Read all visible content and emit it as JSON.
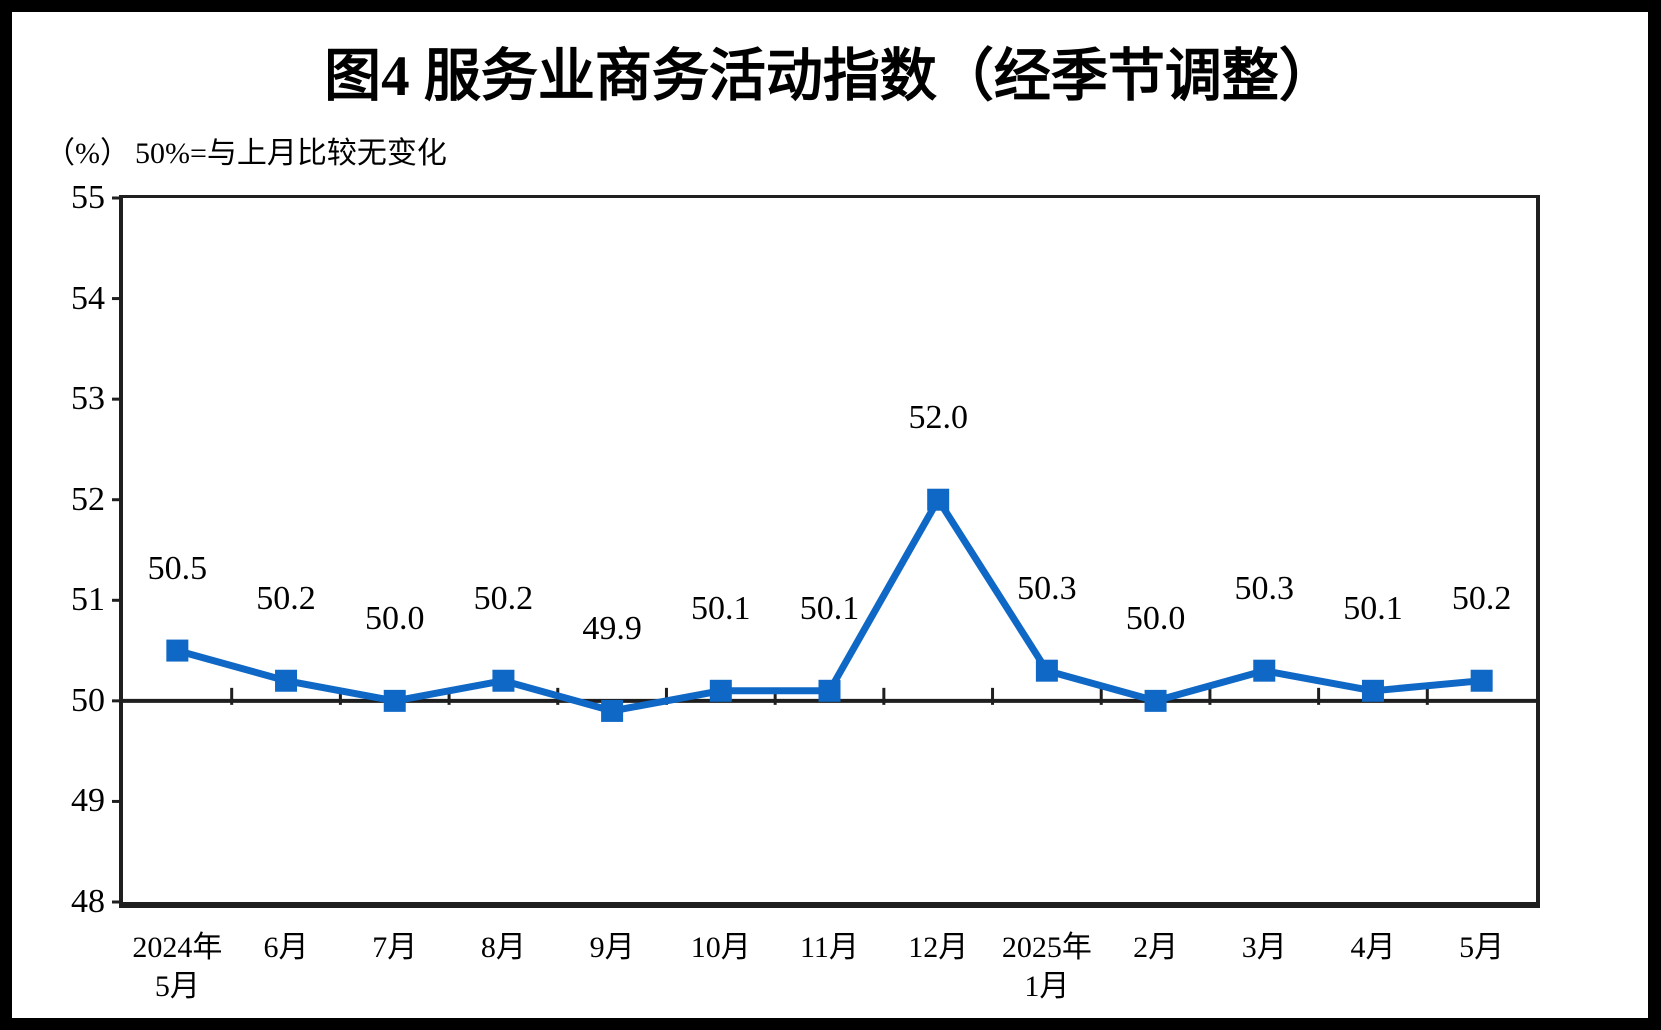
{
  "header": {
    "title": "图4 服务业商务活动指数（经季节调整）",
    "unit_label": "（%）",
    "reference_note": "50%=与上月比较无变化"
  },
  "chart_data": {
    "type": "line",
    "title": "图4 服务业商务活动指数（经季节调整）",
    "subtitle_unit": "（%）",
    "subtitle_note": "50%=与上月比较无变化",
    "categories": [
      "2024年\n5月",
      "6月",
      "7月",
      "8月",
      "9月",
      "10月",
      "11月",
      "12月",
      "2025年\n1月",
      "2月",
      "3月",
      "4月",
      "5月"
    ],
    "values": [
      50.5,
      50.2,
      50.0,
      50.2,
      49.9,
      50.1,
      50.1,
      52.0,
      50.3,
      50.0,
      50.3,
      50.1,
      50.2
    ],
    "data_labels": [
      "50.5",
      "50.2",
      "50.0",
      "50.2",
      "49.9",
      "50.1",
      "50.1",
      "52.0",
      "50.3",
      "50.0",
      "50.3",
      "50.1",
      "50.2"
    ],
    "ylim": [
      48,
      55
    ],
    "yticks": [
      55,
      54,
      53,
      52,
      51,
      50,
      49,
      48
    ],
    "reference_line": 50,
    "grid": false,
    "legend_position": "none",
    "marker": "square",
    "colors": {
      "series": "#0f68c5",
      "axis": "#1f1f1f",
      "text": "#000000"
    }
  }
}
